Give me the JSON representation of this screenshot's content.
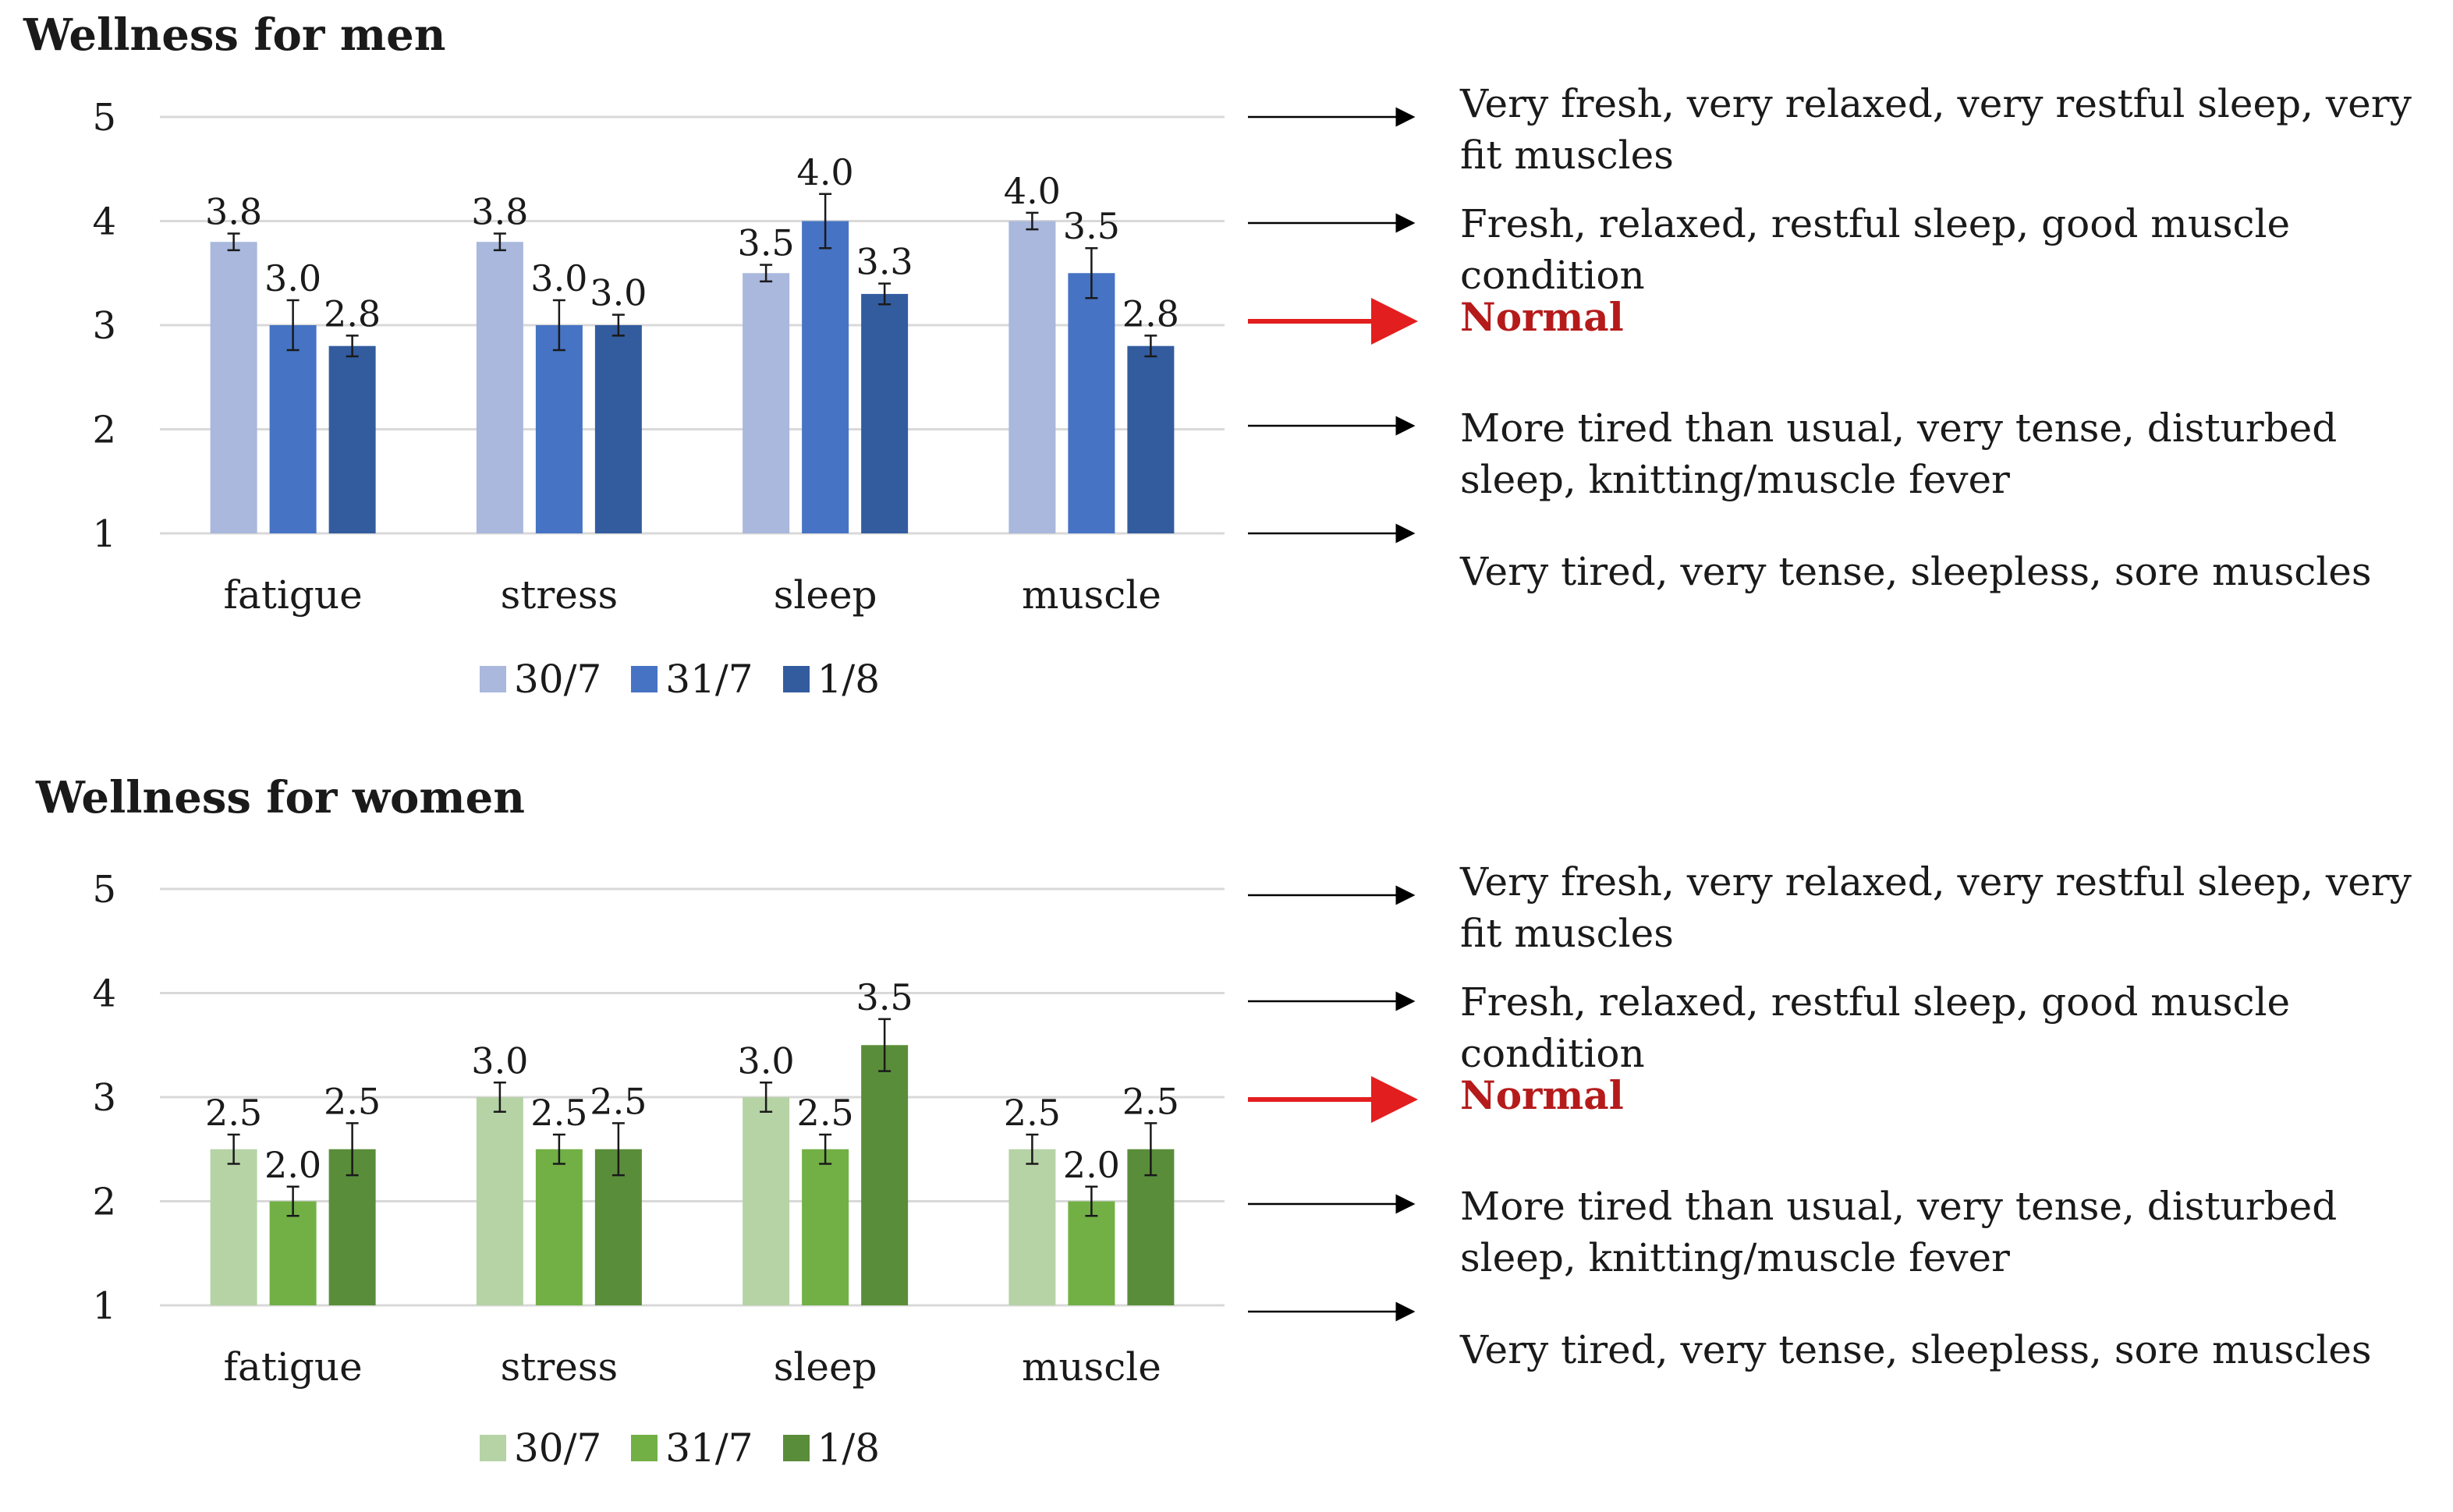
{
  "chart_data": [
    {
      "type": "bar",
      "title": "Wellness for men",
      "categories": [
        "fatigue",
        "stress",
        "sleep",
        "muscle"
      ],
      "ylim": [
        1,
        5
      ],
      "yticks": [
        1,
        2,
        3,
        4,
        5
      ],
      "series": [
        {
          "name": "30/7",
          "color": "#a9b8dc",
          "values": [
            3.8,
            3.8,
            3.5,
            4.0
          ],
          "labels": [
            "3.8",
            "3.8",
            "3.5",
            "4.0"
          ],
          "err": [
            0.08,
            0.08,
            0.08,
            0.08
          ]
        },
        {
          "name": "31/7",
          "color": "#4673c4",
          "values": [
            3.0,
            3.0,
            4.0,
            3.5
          ],
          "labels": [
            "3.0",
            "3.0",
            "4.0",
            "3.5"
          ],
          "err": [
            0.24,
            0.24,
            0.26,
            0.24
          ]
        },
        {
          "name": "1/8",
          "color": "#335c9f",
          "values": [
            2.8,
            3.0,
            3.3,
            2.8
          ],
          "labels": [
            "2.8",
            "3.0",
            "3.3",
            "2.8"
          ],
          "err": [
            0.1,
            0.1,
            0.1,
            0.1
          ]
        }
      ],
      "annotations": [
        {
          "level": 5,
          "text": "Very fresh, very relaxed, very restful sleep, very fit muscles",
          "highlight": false
        },
        {
          "level": 4,
          "text": "Fresh, relaxed, restful sleep, good muscle condition",
          "highlight": false
        },
        {
          "level": 3,
          "text": "Normal",
          "highlight": true
        },
        {
          "level": 2,
          "text": "More tired than usual, very tense, disturbed sleep, knitting/muscle fever",
          "highlight": false
        },
        {
          "level": 1,
          "text": "Very tired, very tense, sleepless, sore muscles",
          "highlight": false
        }
      ],
      "legend_position": "bottom",
      "grid": true
    },
    {
      "type": "bar",
      "title": "Wellness for women",
      "categories": [
        "fatigue",
        "stress",
        "sleep",
        "muscle"
      ],
      "ylim": [
        1,
        5
      ],
      "yticks": [
        1,
        2,
        3,
        4,
        5
      ],
      "series": [
        {
          "name": "30/7",
          "color": "#b6d3a6",
          "values": [
            2.5,
            3.0,
            3.0,
            2.5
          ],
          "labels": [
            "2.5",
            "3.0",
            "3.0",
            "2.5"
          ],
          "err": [
            0.14,
            0.14,
            0.14,
            0.14
          ]
        },
        {
          "name": "31/7",
          "color": "#72b046",
          "values": [
            2.0,
            2.5,
            2.5,
            2.0
          ],
          "labels": [
            "2.0",
            "2.5",
            "2.5",
            "2.0"
          ],
          "err": [
            0.14,
            0.14,
            0.14,
            0.14
          ]
        },
        {
          "name": "1/8",
          "color": "#5a8d3a",
          "values": [
            2.5,
            2.5,
            3.5,
            2.5
          ],
          "labels": [
            "2.5",
            "2.5",
            "3.5",
            "2.5"
          ],
          "err": [
            0.25,
            0.25,
            0.25,
            0.25
          ]
        }
      ],
      "annotations": [
        {
          "level": 5,
          "text": "Very fresh, very relaxed, very restful sleep, very fit muscles",
          "highlight": false
        },
        {
          "level": 4,
          "text": "Fresh, relaxed, restful sleep, good muscle condition",
          "highlight": false
        },
        {
          "level": 3,
          "text": "Normal",
          "highlight": true
        },
        {
          "level": 2,
          "text": "More tired than usual, very tense, disturbed sleep, knitting/muscle fever",
          "highlight": false
        },
        {
          "level": 1,
          "text": "Very tired, very tense, sleepless, sore muscles",
          "highlight": false
        }
      ],
      "legend_position": "bottom",
      "grid": true
    }
  ],
  "colors": {
    "gridline": "#d9d9d9",
    "arrow": "#000000",
    "highlight_arrow": "#e31e1e",
    "highlight_text": "#b51b1b"
  }
}
